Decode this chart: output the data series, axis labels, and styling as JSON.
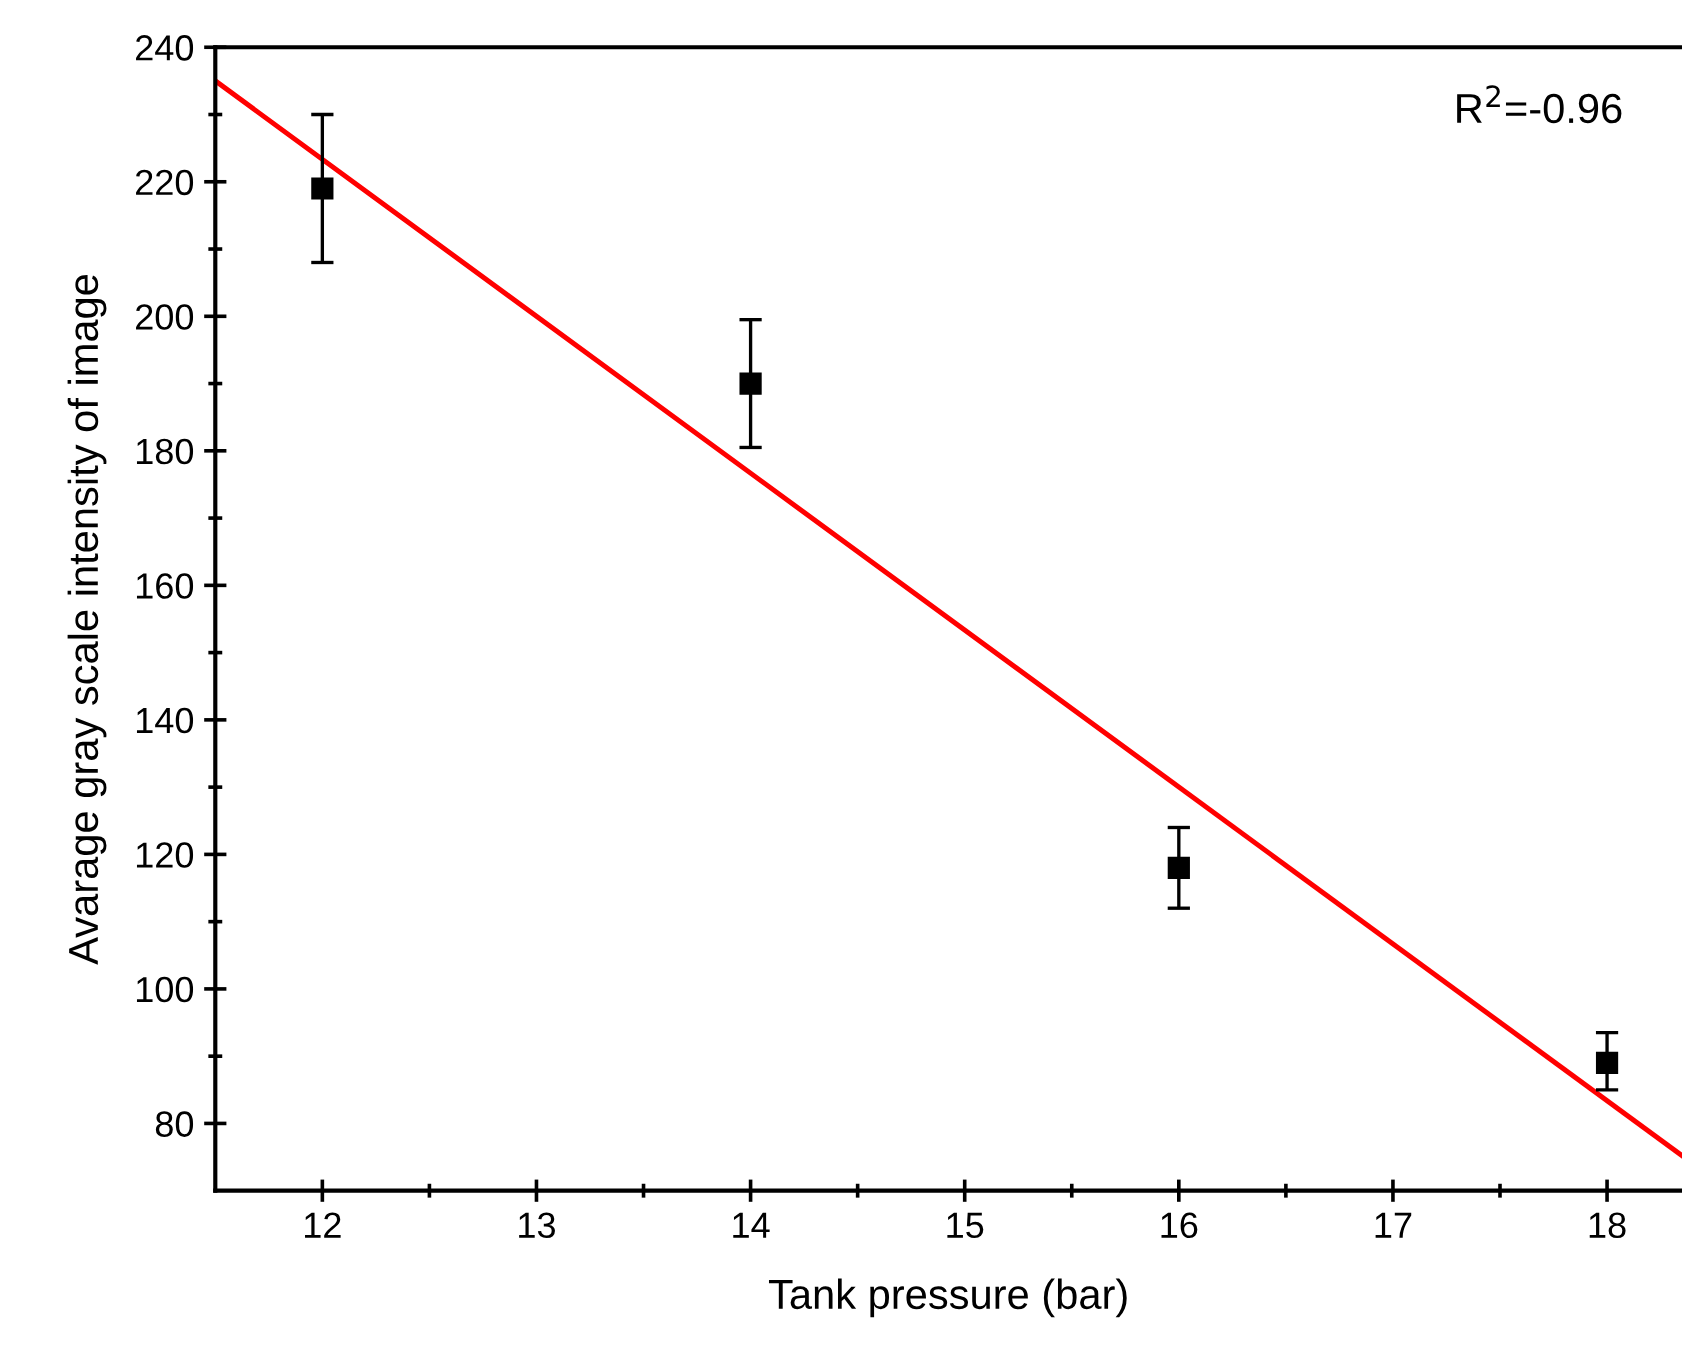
{
  "chart_data": {
    "type": "scatter",
    "xlabel": "Tank pressure (bar)",
    "ylabel": "Avarage gray scale intensity of image",
    "annotations": [
      "R$^{2}$=-0.96"
    ],
    "x": [
      12,
      14,
      16,
      18
    ],
    "series": [
      {
        "marker": "square",
        "color": "#000000",
        "values": [
          219,
          190,
          118,
          89
        ],
        "errors": [
          [
            208,
            230
          ],
          [
            180.5,
            199.5
          ],
          [
            112,
            124
          ],
          [
            85,
            93.5
          ]
        ]
      },
      {
        "type": "line",
        "marker": "none",
        "color": "#ff0000",
        "x": [
          11.5,
          18.35
        ],
        "values": [
          235,
          75.2
        ]
      }
    ],
    "xlim": [
      11.5,
      18.35
    ],
    "ylim": [
      70,
      240
    ],
    "xticks": [
      12,
      13,
      14,
      15,
      16,
      17,
      18
    ],
    "yticks": [
      80,
      100,
      120,
      140,
      160,
      180,
      200,
      220,
      240
    ],
    "grid": false,
    "legend": false
  }
}
